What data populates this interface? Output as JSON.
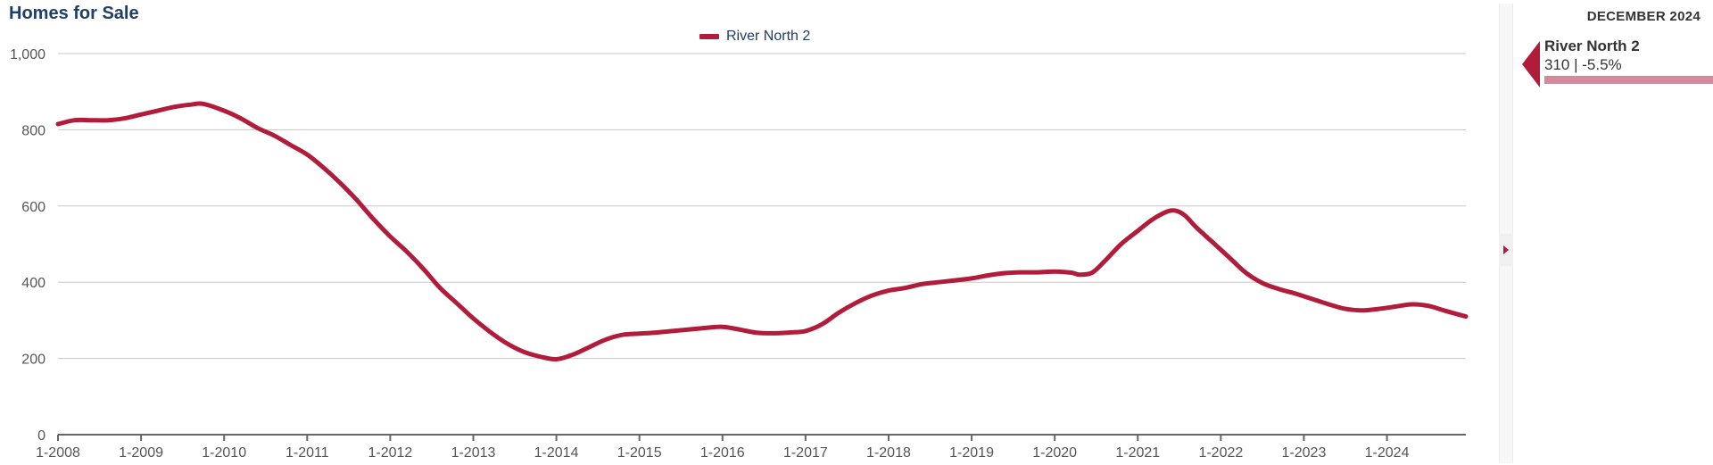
{
  "page": {
    "title": "Homes for Sale"
  },
  "legend": {
    "label": "River North 2"
  },
  "side_panel": {
    "month": "DECEMBER 2024",
    "item": {
      "name": "River North 2",
      "value_text": "310 | -5.5%"
    }
  },
  "colors": {
    "series": "#b01c3a",
    "series_light": "#d6899a",
    "axis": "#666666",
    "grid": "#c8c8c8"
  },
  "icons": {
    "collapse": "triangle-right-icon",
    "pointer": "triangle-left-icon"
  },
  "chart_data": {
    "type": "line",
    "title": "Homes for Sale",
    "xlabel": "",
    "ylabel": "",
    "ylim": [
      0,
      1000
    ],
    "yticks": [
      0,
      200,
      400,
      600,
      800,
      1000
    ],
    "ytick_labels": [
      "0",
      "200",
      "400",
      "600",
      "800",
      "1,000"
    ],
    "xlim": [
      2008.0,
      2024.95
    ],
    "xticks": [
      2008,
      2009,
      2010,
      2011,
      2012,
      2013,
      2014,
      2015,
      2016,
      2017,
      2018,
      2019,
      2020,
      2021,
      2022,
      2023,
      2024
    ],
    "xtick_labels": [
      "1-2008",
      "1-2009",
      "1-2010",
      "1-2011",
      "1-2012",
      "1-2013",
      "1-2014",
      "1-2015",
      "1-2016",
      "1-2017",
      "1-2018",
      "1-2019",
      "1-2020",
      "1-2021",
      "1-2022",
      "1-2023",
      "1-2024"
    ],
    "grid": true,
    "legend_position": "top-center",
    "series": [
      {
        "name": "River North 2",
        "points": [
          [
            2008.0,
            815
          ],
          [
            2008.2,
            825
          ],
          [
            2008.4,
            825
          ],
          [
            2008.6,
            825
          ],
          [
            2008.8,
            830
          ],
          [
            2009.0,
            840
          ],
          [
            2009.2,
            850
          ],
          [
            2009.4,
            860
          ],
          [
            2009.6,
            866
          ],
          [
            2009.75,
            868
          ],
          [
            2010.0,
            850
          ],
          [
            2010.2,
            830
          ],
          [
            2010.4,
            805
          ],
          [
            2010.6,
            785
          ],
          [
            2010.8,
            760
          ],
          [
            2011.0,
            735
          ],
          [
            2011.2,
            700
          ],
          [
            2011.4,
            660
          ],
          [
            2011.6,
            615
          ],
          [
            2011.8,
            565
          ],
          [
            2012.0,
            520
          ],
          [
            2012.2,
            480
          ],
          [
            2012.4,
            435
          ],
          [
            2012.6,
            385
          ],
          [
            2012.8,
            345
          ],
          [
            2013.0,
            305
          ],
          [
            2013.2,
            270
          ],
          [
            2013.4,
            240
          ],
          [
            2013.6,
            218
          ],
          [
            2013.8,
            205
          ],
          [
            2014.0,
            198
          ],
          [
            2014.2,
            210
          ],
          [
            2014.4,
            230
          ],
          [
            2014.6,
            250
          ],
          [
            2014.8,
            262
          ],
          [
            2015.0,
            265
          ],
          [
            2015.2,
            268
          ],
          [
            2015.4,
            272
          ],
          [
            2015.6,
            276
          ],
          [
            2015.8,
            280
          ],
          [
            2016.0,
            283
          ],
          [
            2016.2,
            276
          ],
          [
            2016.4,
            268
          ],
          [
            2016.6,
            266
          ],
          [
            2016.8,
            268
          ],
          [
            2017.0,
            272
          ],
          [
            2017.2,
            290
          ],
          [
            2017.4,
            320
          ],
          [
            2017.6,
            345
          ],
          [
            2017.8,
            365
          ],
          [
            2018.0,
            378
          ],
          [
            2018.2,
            385
          ],
          [
            2018.4,
            395
          ],
          [
            2018.6,
            400
          ],
          [
            2018.8,
            405
          ],
          [
            2019.0,
            410
          ],
          [
            2019.2,
            418
          ],
          [
            2019.4,
            424
          ],
          [
            2019.6,
            426
          ],
          [
            2019.8,
            426
          ],
          [
            2020.0,
            428
          ],
          [
            2020.2,
            425
          ],
          [
            2020.3,
            420
          ],
          [
            2020.45,
            425
          ],
          [
            2020.6,
            455
          ],
          [
            2020.8,
            500
          ],
          [
            2021.0,
            535
          ],
          [
            2021.2,
            568
          ],
          [
            2021.4,
            588
          ],
          [
            2021.55,
            578
          ],
          [
            2021.7,
            545
          ],
          [
            2021.9,
            505
          ],
          [
            2022.1,
            465
          ],
          [
            2022.3,
            425
          ],
          [
            2022.5,
            398
          ],
          [
            2022.7,
            382
          ],
          [
            2022.9,
            370
          ],
          [
            2023.1,
            356
          ],
          [
            2023.3,
            342
          ],
          [
            2023.5,
            330
          ],
          [
            2023.7,
            326
          ],
          [
            2023.9,
            330
          ],
          [
            2024.1,
            336
          ],
          [
            2024.3,
            342
          ],
          [
            2024.5,
            338
          ],
          [
            2024.7,
            325
          ],
          [
            2024.95,
            310
          ]
        ]
      }
    ]
  }
}
